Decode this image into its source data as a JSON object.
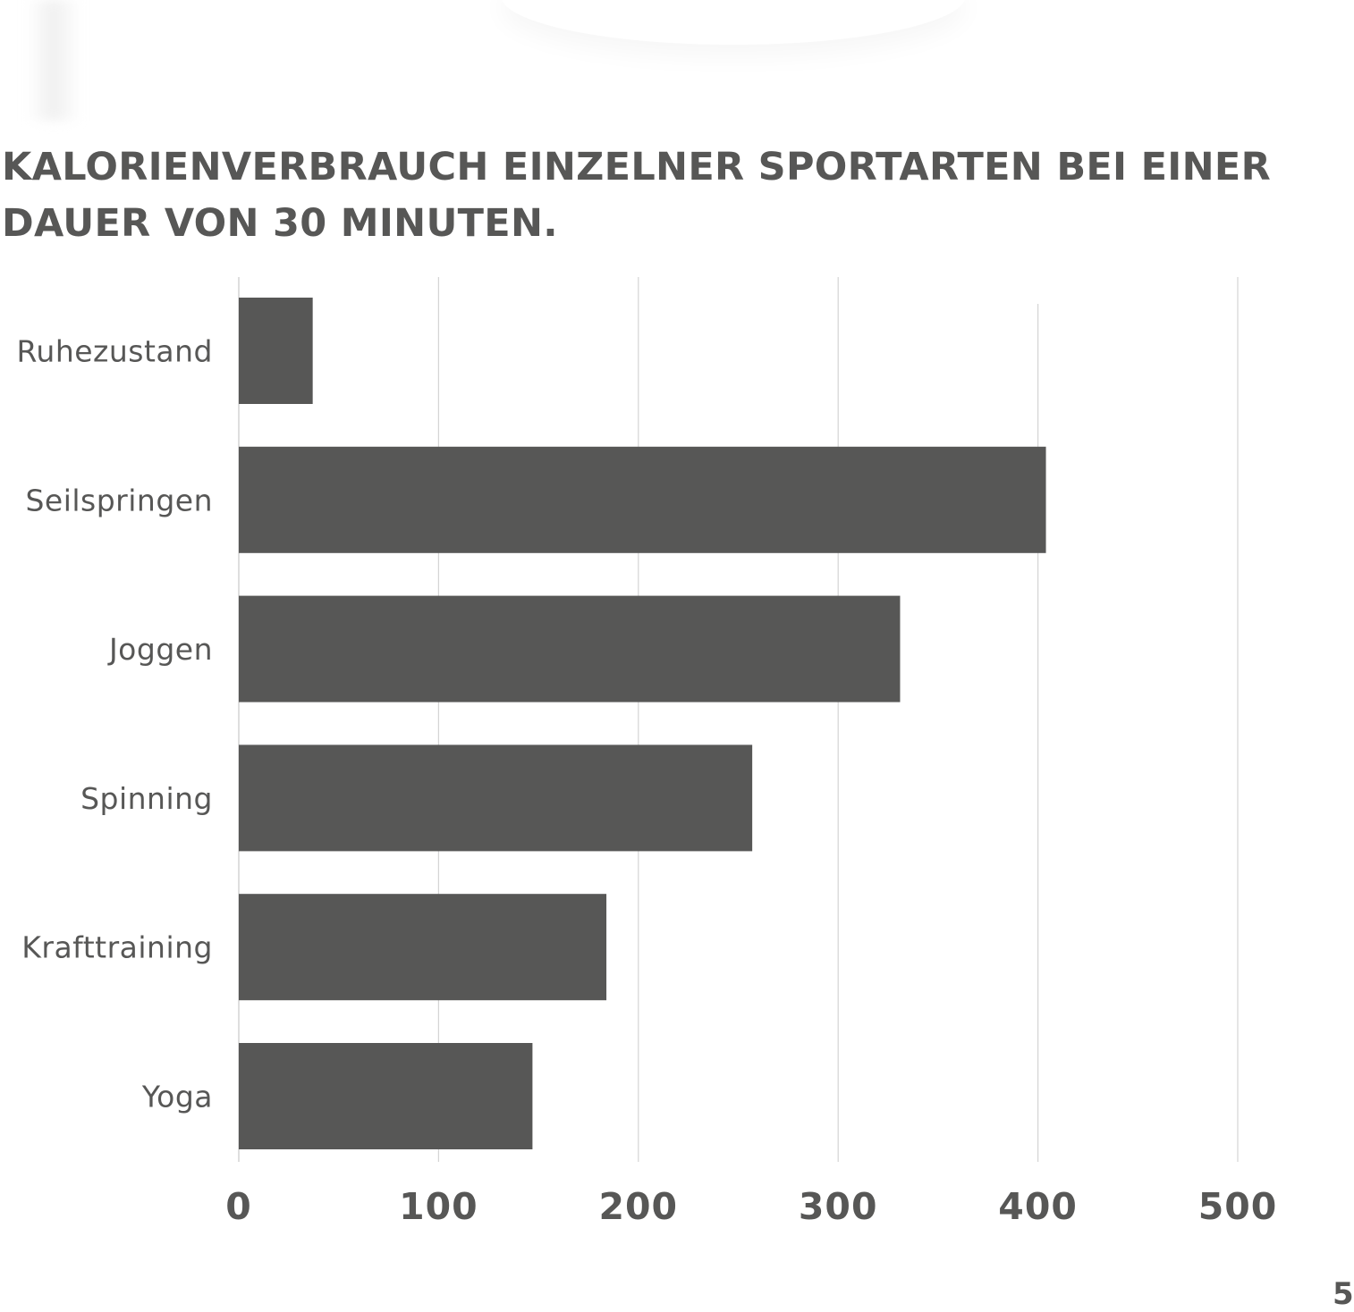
{
  "header": {
    "title_line1": "KALORIENVERBRAUCH EINZELNER SPORTARTEN BEI EINER",
    "title_line2": "DAUER VON 30 MINUTEN."
  },
  "page_number": "5",
  "colors": {
    "bar": "#575756",
    "grid": "#d4d4d4",
    "text": "#575756"
  },
  "chart_data": {
    "type": "bar",
    "orientation": "horizontal",
    "title": "KALORIENVERBRAUCH EINZELNER SPORTARTEN BEI EINER DAUER VON 30 MINUTEN.",
    "categories": [
      "Ruhezustand",
      "Seilspringen",
      "Joggen",
      "Spinning",
      "Krafttraining",
      "Yoga"
    ],
    "values": [
      37,
      404,
      331,
      257,
      184,
      147
    ],
    "xlabel": "",
    "ylabel": "",
    "xlim": [
      0,
      500
    ],
    "xticks": [
      0,
      100,
      200,
      300,
      400,
      500
    ],
    "xtick_labels": [
      "0",
      "100",
      "200",
      "300",
      "400",
      "500"
    ],
    "grid": true,
    "legend": "none"
  }
}
